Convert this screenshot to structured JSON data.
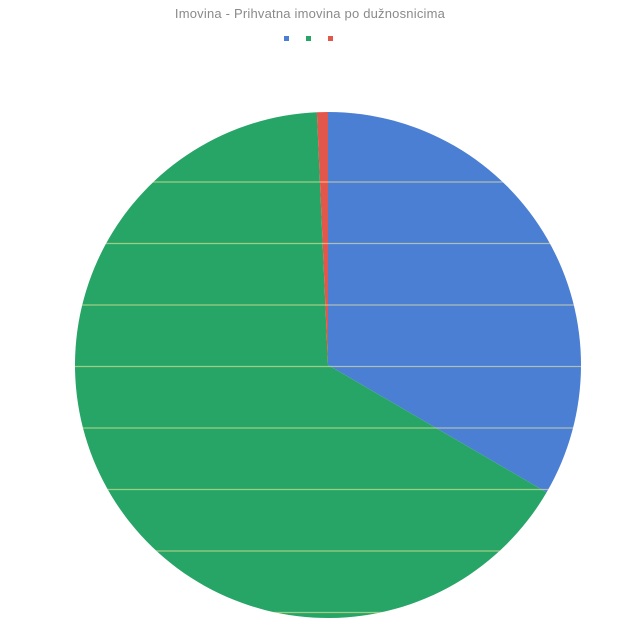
{
  "chart_data": {
    "type": "pie",
    "title": "Imovina - Prihvatna imovina po dužnosnicima",
    "categories": [
      "",
      "",
      ""
    ],
    "values": [
      33.4,
      65.9,
      0.7
    ],
    "colors": [
      "#4a7fd3",
      "#27a567",
      "#e2574c"
    ],
    "legend_position": "top",
    "slice_labels": [
      "",
      "",
      ""
    ]
  }
}
